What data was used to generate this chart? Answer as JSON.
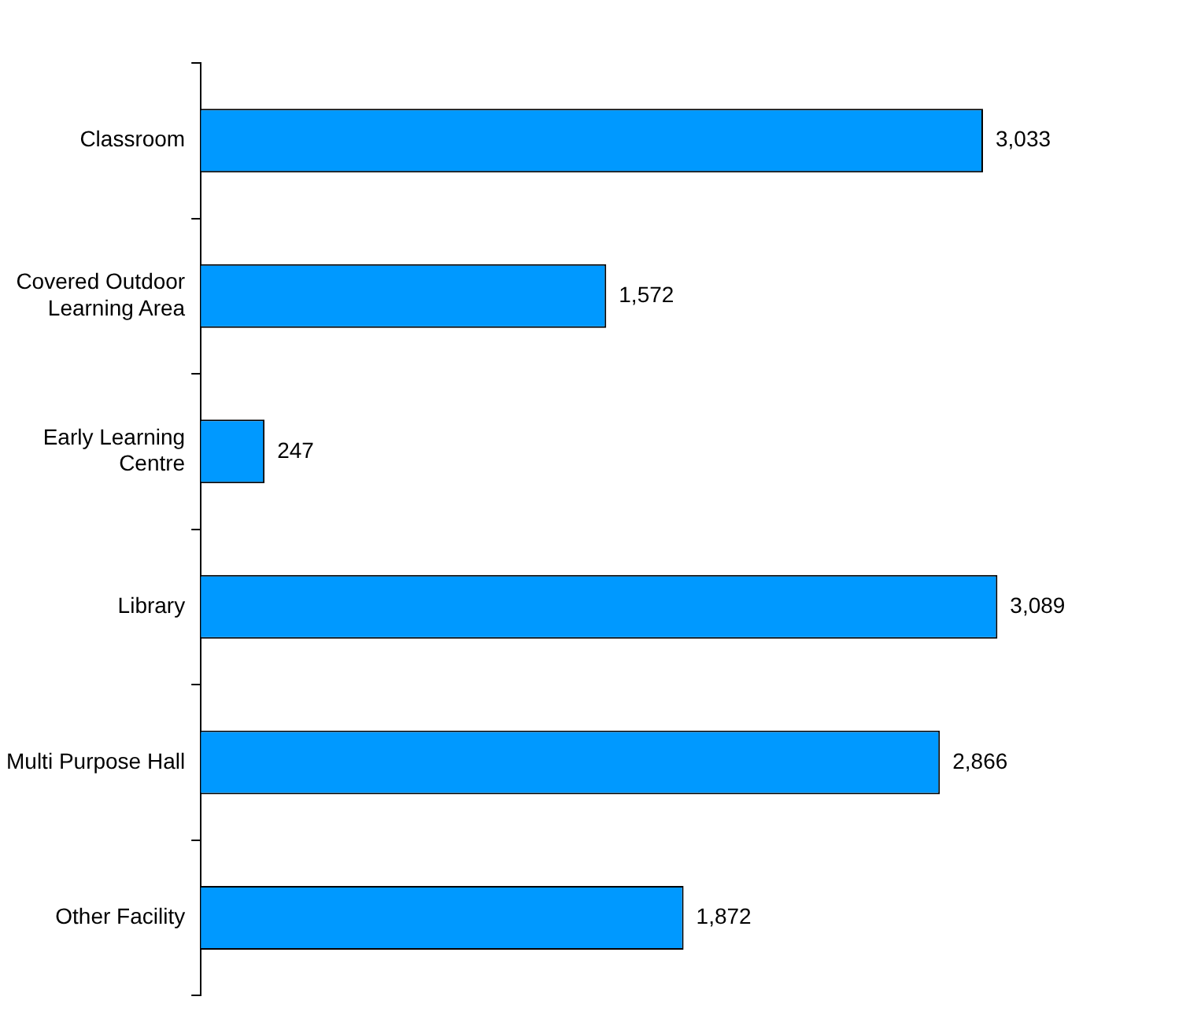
{
  "chart_data": {
    "type": "bar",
    "orientation": "horizontal",
    "categories": [
      "Classroom",
      "Covered Outdoor Learning Area",
      "Early Learning Centre",
      "Library",
      "Multi Purpose Hall",
      "Other Facility"
    ],
    "values": [
      3033,
      1572,
      247,
      3089,
      2866,
      1872
    ],
    "value_labels": [
      "3,033",
      "1,572",
      "247",
      "3,089",
      "2,866",
      "1,872"
    ],
    "color": "#0099ff",
    "grid": false,
    "legend": false
  }
}
